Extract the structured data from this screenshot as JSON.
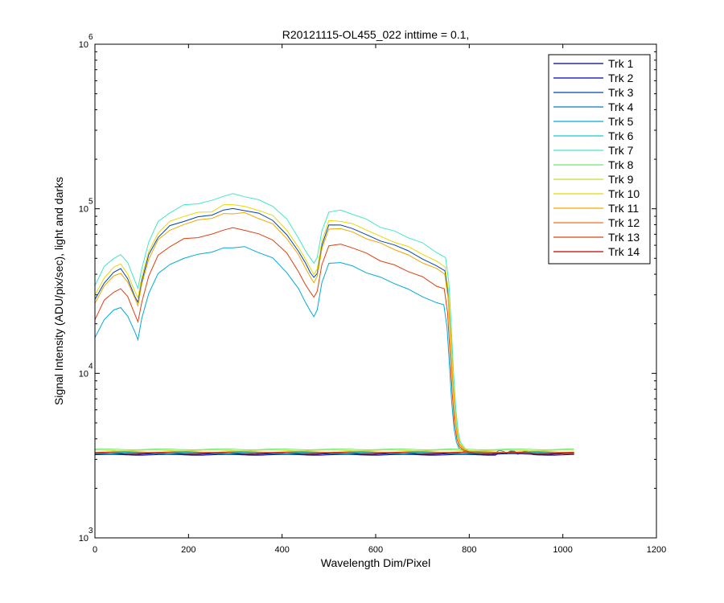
{
  "chart_data": {
    "type": "line",
    "title": "R20121115-OL455_022 inttime = 0.1,",
    "xlabel": "Wavelength Dim/Pixel",
    "ylabel": "Signal Intensity (ADU/pix/sec), light and darks",
    "xlim": [
      0,
      1200
    ],
    "ylim": [
      1000,
      1000000
    ],
    "yscale": "log",
    "grid": false,
    "legend_position": "top-right",
    "x_ticks": [
      "0",
      "200",
      "400",
      "600",
      "800",
      "1000",
      "1200"
    ],
    "y_ticks": [
      {
        "base": "10",
        "exp": "3"
      },
      {
        "base": "10",
        "exp": "4"
      },
      {
        "base": "10",
        "exp": "5"
      },
      {
        "base": "10",
        "exp": "6"
      }
    ],
    "series": [
      {
        "name": "Trk 1",
        "color": "#000080",
        "kind": "dark",
        "level": 3200
      },
      {
        "name": "Trk 2",
        "color": "#0000b0",
        "kind": "dark",
        "level": 3230
      },
      {
        "name": "Trk 3",
        "color": "#0044b4",
        "kind": "light",
        "scale": 1.0
      },
      {
        "name": "Trk 4",
        "color": "#0080b4",
        "kind": "dark",
        "level": 3260
      },
      {
        "name": "Trk 5",
        "color": "#00aad8",
        "kind": "light",
        "scale": 0.59
      },
      {
        "name": "Trk 6",
        "color": "#10cccc",
        "kind": "dark",
        "level": 3300
      },
      {
        "name": "Trk 7",
        "color": "#40e8c8",
        "kind": "light",
        "scale": 1.22
      },
      {
        "name": "Trk 8",
        "color": "#70e870",
        "kind": "dark",
        "level": 3450
      },
      {
        "name": "Trk 9",
        "color": "#c0e030",
        "kind": "dark",
        "level": 3400
      },
      {
        "name": "Trk 10",
        "color": "#e8d800",
        "kind": "light",
        "scale": 1.06
      },
      {
        "name": "Trk 11",
        "color": "#f0a800",
        "kind": "light",
        "scale": 0.95
      },
      {
        "name": "Trk 12",
        "color": "#f07020",
        "kind": "dark",
        "level": 3330
      },
      {
        "name": "Trk 13",
        "color": "#e04010",
        "kind": "light",
        "scale": 0.76
      },
      {
        "name": "Trk 14",
        "color": "#c00000",
        "kind": "dark",
        "level": 3280
      }
    ],
    "base_profile": {
      "x": [
        0,
        20,
        40,
        55,
        70,
        85,
        92,
        100,
        115,
        135,
        160,
        190,
        220,
        250,
        275,
        295,
        320,
        350,
        380,
        410,
        435,
        450,
        460,
        468,
        475,
        485,
        500,
        525,
        550,
        580,
        610,
        640,
        670,
        700,
        730,
        748,
        755,
        760,
        765,
        770,
        775,
        780,
        790,
        800,
        810,
        850,
        900,
        950,
        1024
      ],
      "y": [
        28000,
        36000,
        41000,
        43000,
        38000,
        30000,
        27000,
        36000,
        52000,
        68000,
        78000,
        85000,
        89000,
        92000,
        98000,
        100000,
        98000,
        93000,
        85000,
        70000,
        55000,
        46000,
        41000,
        38000,
        41000,
        60000,
        79000,
        80000,
        76000,
        70000,
        64000,
        60000,
        55000,
        50000,
        45000,
        42000,
        30000,
        17000,
        9000,
        5500,
        4200,
        3700,
        3450,
        3350,
        3300,
        3280,
        3280,
        3260,
        3260
      ]
    }
  }
}
